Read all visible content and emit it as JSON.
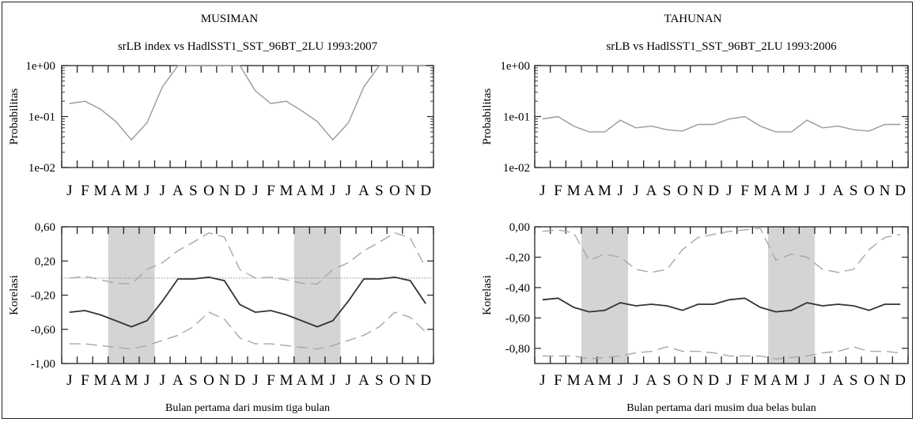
{
  "chart_data": [
    {
      "type": "line",
      "section": "MUSIMAN",
      "title": "srLB index vs HadlSST1_SST_96BT_2LU 1993:2007",
      "ylabel": "Probabilitas",
      "xlabel": "",
      "y_scale": "log",
      "ylim": [
        0.01,
        1
      ],
      "yticks": [
        "1e+00",
        "1e-01",
        "1e-02"
      ],
      "categories": [
        "J",
        "F",
        "M",
        "A",
        "M",
        "J",
        "J",
        "A",
        "S",
        "O",
        "N",
        "D",
        "J",
        "F",
        "M",
        "A",
        "M",
        "J",
        "J",
        "A",
        "S",
        "O",
        "N",
        "D"
      ],
      "series": [
        {
          "style": "solid-gray",
          "values": [
            0.18,
            0.2,
            0.14,
            0.08,
            0.035,
            0.075,
            0.38,
            1.0,
            1.0,
            1.0,
            1.0,
            1.0,
            0.32,
            0.18,
            0.2,
            0.13,
            0.08,
            0.035,
            0.075,
            0.38,
            1.0,
            1.0,
            1.0,
            1.0
          ]
        }
      ],
      "grid": false
    },
    {
      "type": "line",
      "section": "MUSIMAN",
      "title": "",
      "ylabel": "Korelasi",
      "xlabel": "Bulan pertama dari musim tiga bulan",
      "ylim": [
        -1.0,
        0.6
      ],
      "yticks": [
        "0,60",
        "0,20",
        "-0,20",
        "-0,60",
        "-1,00"
      ],
      "ytick_values": [
        0.6,
        0.2,
        -0.2,
        -0.6,
        -1.0
      ],
      "categories": [
        "J",
        "F",
        "M",
        "A",
        "M",
        "J",
        "J",
        "A",
        "S",
        "O",
        "N",
        "D",
        "J",
        "F",
        "M",
        "A",
        "M",
        "J",
        "J",
        "A",
        "S",
        "O",
        "N",
        "D"
      ],
      "shaded_ranges": [
        [
          3,
          6
        ],
        [
          15,
          18
        ]
      ],
      "reference_line": 0.0,
      "series": [
        {
          "style": "solid-dark",
          "values": [
            -0.4,
            -0.38,
            -0.43,
            -0.5,
            -0.57,
            -0.5,
            -0.27,
            -0.01,
            -0.01,
            0.01,
            -0.03,
            -0.31,
            -0.4,
            -0.38,
            -0.43,
            -0.5,
            -0.57,
            -0.5,
            -0.27,
            -0.01,
            -0.01,
            0.01,
            -0.03,
            -0.3
          ]
        },
        {
          "style": "dashed-upper",
          "values": [
            0.0,
            0.02,
            -0.02,
            -0.06,
            -0.07,
            0.1,
            0.18,
            0.32,
            0.42,
            0.53,
            0.48,
            0.1,
            0.0,
            0.01,
            -0.02,
            -0.06,
            -0.07,
            0.1,
            0.18,
            0.32,
            0.42,
            0.53,
            0.47,
            0.12
          ]
        },
        {
          "style": "dashed-lower",
          "values": [
            -0.77,
            -0.77,
            -0.79,
            -0.81,
            -0.83,
            -0.79,
            -0.73,
            -0.67,
            -0.57,
            -0.4,
            -0.48,
            -0.7,
            -0.77,
            -0.77,
            -0.79,
            -0.81,
            -0.83,
            -0.79,
            -0.73,
            -0.67,
            -0.57,
            -0.4,
            -0.46,
            -0.63
          ]
        }
      ],
      "grid": false
    },
    {
      "type": "line",
      "section": "TAHUNAN",
      "title": "srLB vs HadlSST1_SST_96BT_2LU 1993:2006",
      "ylabel": "Probabilitas",
      "xlabel": "",
      "y_scale": "log",
      "ylim": [
        0.01,
        1
      ],
      "yticks": [
        "1e+00",
        "1e-01",
        "1e-02"
      ],
      "categories": [
        "J",
        "F",
        "M",
        "A",
        "M",
        "J",
        "J",
        "A",
        "S",
        "O",
        "N",
        "D",
        "J",
        "F",
        "M",
        "A",
        "M",
        "J",
        "J",
        "A",
        "S",
        "O",
        "N",
        "D"
      ],
      "series": [
        {
          "style": "solid-gray",
          "values": [
            0.09,
            0.1,
            0.065,
            0.05,
            0.05,
            0.085,
            0.06,
            0.065,
            0.055,
            0.052,
            0.07,
            0.07,
            0.09,
            0.1,
            0.065,
            0.05,
            0.05,
            0.085,
            0.06,
            0.065,
            0.055,
            0.052,
            0.07,
            0.07
          ]
        }
      ],
      "grid": false
    },
    {
      "type": "line",
      "section": "TAHUNAN",
      "title": "",
      "ylabel": "Korelasi",
      "xlabel": "Bulan pertama dari musim dua belas bulan",
      "ylim": [
        -0.9,
        0.0
      ],
      "yticks": [
        "0,00",
        "-0,20",
        "-0,40",
        "-0,60",
        "-0,80"
      ],
      "ytick_values": [
        0.0,
        -0.2,
        -0.4,
        -0.6,
        -0.8
      ],
      "categories": [
        "J",
        "F",
        "M",
        "A",
        "M",
        "J",
        "J",
        "A",
        "S",
        "O",
        "N",
        "D",
        "J",
        "F",
        "M",
        "A",
        "M",
        "J",
        "J",
        "A",
        "S",
        "O",
        "N",
        "D"
      ],
      "shaded_ranges": [
        [
          3,
          6
        ],
        [
          15,
          18
        ]
      ],
      "series": [
        {
          "style": "solid-dark",
          "values": [
            -0.48,
            -0.47,
            -0.53,
            -0.56,
            -0.55,
            -0.5,
            -0.52,
            -0.51,
            -0.52,
            -0.55,
            -0.51,
            -0.51,
            -0.48,
            -0.47,
            -0.53,
            -0.56,
            -0.55,
            -0.5,
            -0.52,
            -0.51,
            -0.52,
            -0.55,
            -0.51,
            -0.51
          ]
        },
        {
          "style": "dashed-upper",
          "values": [
            -0.03,
            -0.02,
            -0.04,
            -0.22,
            -0.18,
            -0.2,
            -0.28,
            -0.3,
            -0.28,
            -0.15,
            -0.07,
            -0.05,
            -0.03,
            -0.02,
            -0.01,
            -0.22,
            -0.18,
            -0.2,
            -0.28,
            -0.3,
            -0.28,
            -0.15,
            -0.07,
            -0.05
          ]
        },
        {
          "style": "dashed-lower",
          "values": [
            -0.85,
            -0.85,
            -0.85,
            -0.87,
            -0.86,
            -0.85,
            -0.83,
            -0.82,
            -0.79,
            -0.82,
            -0.82,
            -0.83,
            -0.85,
            -0.85,
            -0.85,
            -0.87,
            -0.86,
            -0.85,
            -0.83,
            -0.82,
            -0.79,
            -0.82,
            -0.82,
            -0.83
          ]
        }
      ],
      "grid": false
    }
  ],
  "colors": {
    "solid_gray": "#9a9a9a",
    "solid_dark": "#333333",
    "dashed": "#a8a8a8",
    "shade": "#d4d4d4",
    "axis": "#222222"
  }
}
